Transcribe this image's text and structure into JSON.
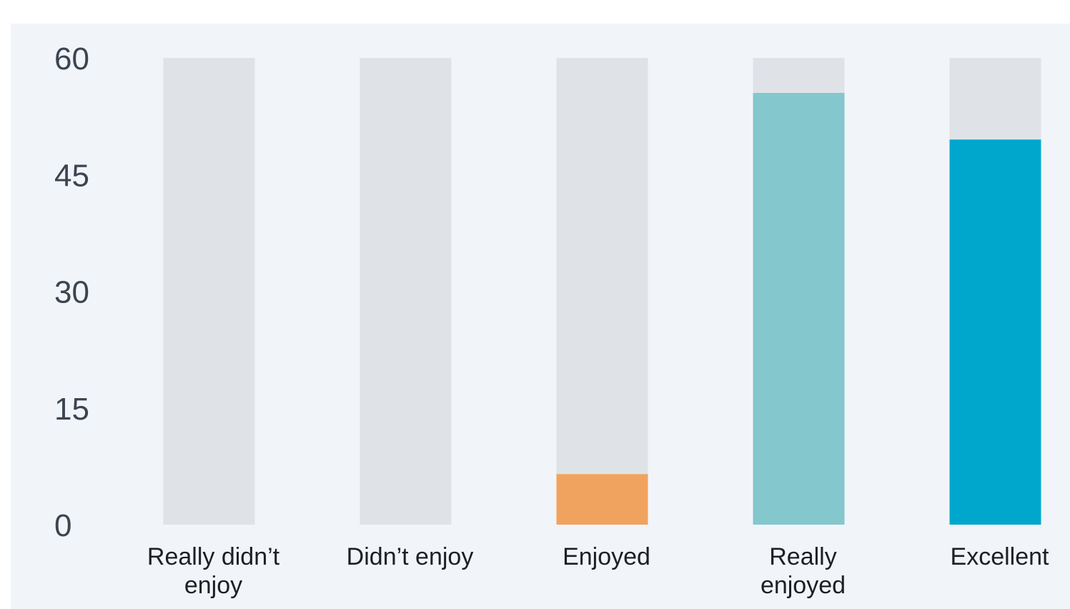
{
  "chart_data": {
    "type": "bar",
    "categories": [
      [
        "Really didn’t",
        "enjoy"
      ],
      [
        "Didn’t enjoy"
      ],
      [
        "Enjoyed"
      ],
      [
        "Really",
        "enjoyed"
      ],
      [
        "Excellent"
      ]
    ],
    "values": [
      0,
      0,
      6.5,
      55.5,
      49.5
    ],
    "background_max": 60,
    "ylim": [
      0,
      60
    ],
    "yticks": [
      "0",
      "15",
      "30",
      "45",
      "60"
    ],
    "ytick_values": [
      0,
      15,
      30,
      45,
      60
    ],
    "colors": {
      "track": "#dfe3e8",
      "bars": [
        "#dfe3e8",
        "#dfe3e8",
        "#f0a35e",
        "#84c7cd",
        "#00a7cc"
      ],
      "panel": "#f1f5f9"
    },
    "title": "",
    "xlabel": "",
    "ylabel": "",
    "grid": false,
    "legend": "none"
  }
}
